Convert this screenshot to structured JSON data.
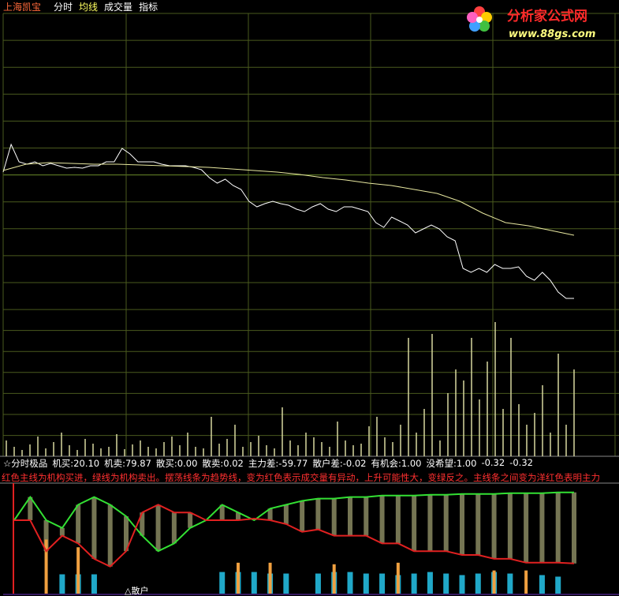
{
  "header": {
    "stock": "上海凯宝",
    "tabs": [
      "分时",
      "均线",
      "成交量",
      "指标"
    ]
  },
  "logo": {
    "title": "分析家公式网",
    "url": "www.88gs.com"
  },
  "readout": [
    "☆分时极品",
    "机买:20.10",
    "机卖:79.87",
    "散买:0.00",
    "散卖:0.02",
    "主力差:-59.77",
    "散户差:-0.02",
    "有机会:1.00",
    "没希望:1.00",
    "-0.32",
    "-0.32"
  ],
  "note": "红色主线为机构买进，绿线为机构卖出。摆荡线条为趋势线，变为红色表示成交量有异动，上升可能性大，变绿反之。主线条之间变为洋红色表明主力",
  "marker": "△散户",
  "chart_data": [
    {
      "type": "line",
      "ylim": [
        0,
        375
      ],
      "series": [
        {
          "color": "#ffffff",
          "values": [
            174,
            209,
            187,
            184,
            187,
            182,
            185,
            182,
            179,
            180,
            179,
            182,
            182,
            187,
            187,
            204,
            197,
            187,
            187,
            187,
            184,
            182,
            182,
            182,
            180,
            177,
            167,
            160,
            165,
            157,
            152,
            137,
            130,
            134,
            137,
            134,
            132,
            127,
            124,
            130,
            134,
            127,
            124,
            130,
            130,
            127,
            124,
            110,
            104,
            117,
            112,
            107,
            97,
            102,
            107,
            102,
            92,
            87,
            52,
            47,
            52,
            47,
            57,
            52,
            52,
            54,
            42,
            37,
            47,
            37,
            22,
            14,
            14
          ]
        },
        {
          "color": "#e8e8a0",
          "values": [
            176,
            184,
            186,
            185,
            184,
            184,
            183,
            182,
            181,
            180,
            178,
            176,
            174,
            171,
            167,
            164,
            160,
            157,
            152,
            147,
            137,
            122,
            110,
            106,
            100,
            94
          ]
        }
      ]
    },
    {
      "type": "bar",
      "ylim": [
        0,
        186
      ],
      "color": "#d8d8a0",
      "values": [
        20,
        12,
        8,
        15,
        25,
        10,
        18,
        30,
        14,
        8,
        22,
        16,
        10,
        12,
        28,
        9,
        15,
        20,
        12,
        10,
        18,
        25,
        14,
        30,
        12,
        10,
        50,
        16,
        22,
        40,
        12,
        18,
        26,
        14,
        10,
        62,
        20,
        14,
        30,
        24,
        18,
        12,
        44,
        20,
        14,
        16,
        38,
        50,
        24,
        18,
        40,
        150,
        30,
        60,
        155,
        20,
        80,
        110,
        96,
        150,
        72,
        120,
        170,
        60,
        150,
        66,
        40,
        55,
        90,
        30,
        130,
        40,
        110
      ]
    },
    {
      "type": "band",
      "ylim": [
        0,
        143
      ],
      "series": [
        {
          "color": "#33e033",
          "values": [
            95,
            125,
            95,
            85,
            115,
            125,
            115,
            100,
            75,
            55,
            65,
            85,
            95,
            115,
            105,
            95,
            110,
            115,
            120,
            123,
            123,
            125,
            125,
            127,
            127,
            127,
            128,
            128,
            129,
            129,
            129,
            130,
            130,
            130,
            131,
            131
          ]
        },
        {
          "color": "#e02020",
          "values": [
            95,
            95,
            55,
            75,
            65,
            45,
            35,
            55,
            105,
            115,
            105,
            105,
            95,
            95,
            95,
            97,
            95,
            90,
            80,
            83,
            75,
            75,
            75,
            65,
            65,
            55,
            55,
            55,
            50,
            50,
            45,
            45,
            40,
            40,
            40,
            39
          ]
        },
        {
          "color": "#20a8c8",
          "values": [
            null,
            null,
            null,
            25,
            25,
            25,
            null,
            null,
            null,
            null,
            null,
            null,
            null,
            28,
            28,
            28,
            26,
            26,
            null,
            26,
            28,
            28,
            26,
            26,
            24,
            26,
            28,
            26,
            24,
            26,
            28,
            26,
            null,
            24,
            22,
            null
          ]
        },
        {
          "color": "#f0a040",
          "values": [
            null,
            null,
            70,
            null,
            60,
            null,
            null,
            null,
            null,
            null,
            null,
            null,
            null,
            null,
            40,
            null,
            40,
            null,
            null,
            null,
            38,
            null,
            null,
            null,
            40,
            null,
            null,
            null,
            null,
            null,
            30,
            null,
            30,
            null,
            null,
            null
          ]
        }
      ]
    }
  ]
}
